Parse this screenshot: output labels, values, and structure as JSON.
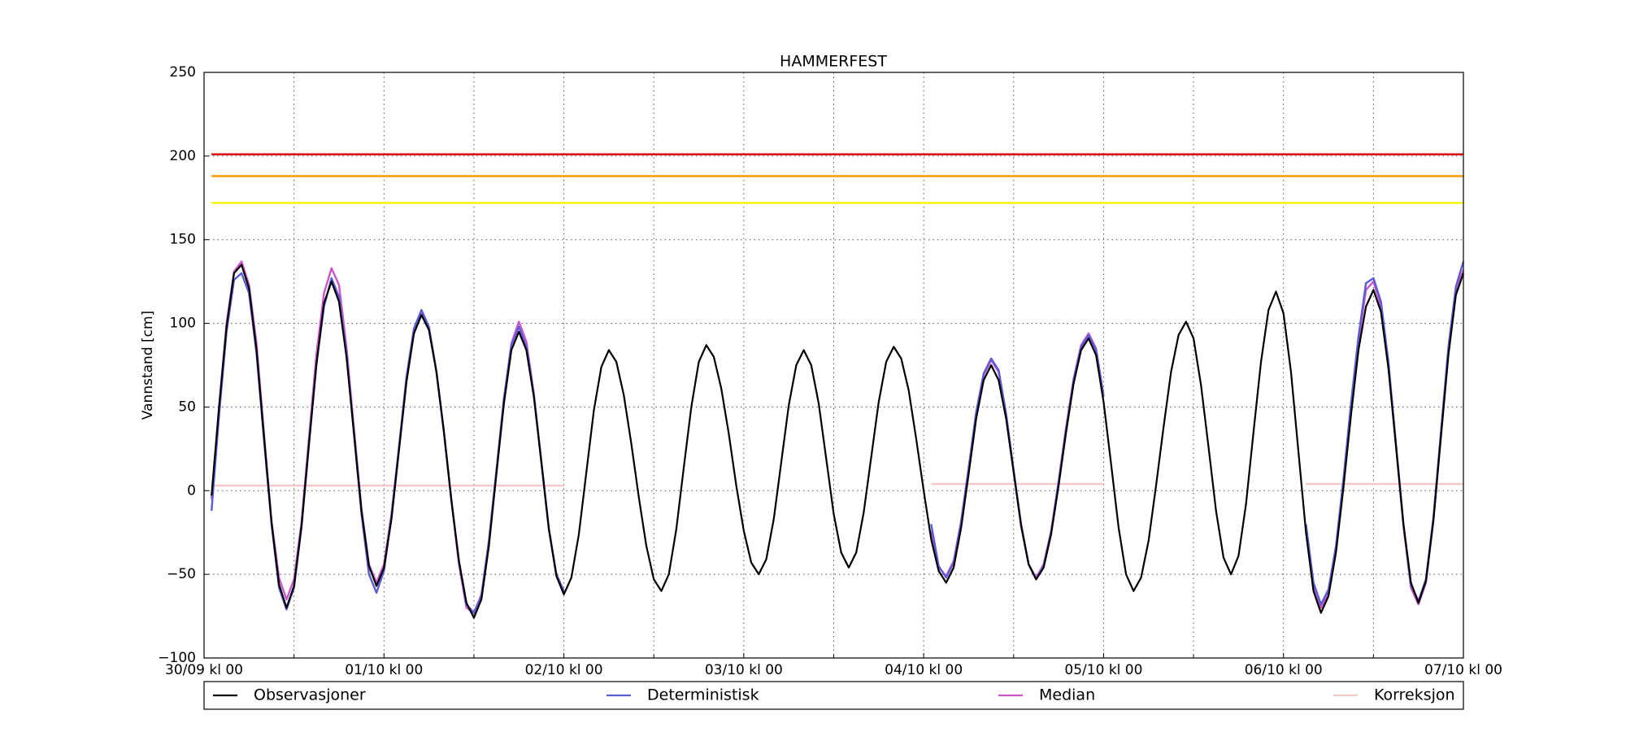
{
  "chart_data": {
    "type": "line",
    "title": "HAMMERFEST",
    "y_label": "Vannstand [cm]",
    "xlim": [
      0,
      168
    ],
    "xticks": [
      {
        "value": 0,
        "label": "30/09 kl 00"
      },
      {
        "value": 24,
        "label": "01/10 kl 00"
      },
      {
        "value": 48,
        "label": "02/10 kl 00"
      },
      {
        "value": 72,
        "label": "03/10 kl 00"
      },
      {
        "value": 96,
        "label": "04/10 kl 00"
      },
      {
        "value": 120,
        "label": "05/10 kl 00"
      },
      {
        "value": 144,
        "label": "06/10 kl 00"
      },
      {
        "value": 168,
        "label": "07/10 kl 00"
      }
    ],
    "x_minor_ticks": [
      12,
      36,
      60,
      84,
      108,
      132,
      156
    ],
    "ylim": [
      -100,
      250
    ],
    "yticks": [
      {
        "value": -100,
        "label": "−100"
      },
      {
        "value": -50,
        "label": "−50"
      },
      0,
      50,
      100,
      150,
      200,
      250
    ],
    "grid": true,
    "legend": "bottom",
    "thresholds": [
      {
        "value": 201,
        "color": "#dd0000"
      },
      {
        "value": 188,
        "color": "#ff9900"
      },
      {
        "value": 172,
        "color": "#f5f500"
      }
    ],
    "x": [
      1,
      2,
      3,
      4,
      5,
      6,
      7,
      8,
      9,
      10,
      11,
      12,
      13,
      14,
      15,
      16,
      17,
      18,
      19,
      20,
      21,
      22,
      23,
      24,
      25,
      26,
      27,
      28,
      29,
      30,
      31,
      32,
      33,
      34,
      35,
      36,
      37,
      38,
      39,
      40,
      41,
      42,
      43,
      44,
      45,
      46,
      47,
      48,
      49,
      50,
      51,
      52,
      53,
      54,
      55,
      56,
      57,
      58,
      59,
      60,
      61,
      62,
      63,
      64,
      65,
      66,
      67,
      68,
      69,
      70,
      71,
      72,
      73,
      74,
      75,
      76,
      77,
      78,
      79,
      80,
      81,
      82,
      83,
      84,
      85,
      86,
      87,
      88,
      89,
      90,
      91,
      92,
      93,
      94,
      95,
      96,
      97,
      98,
      99,
      100,
      101,
      102,
      103,
      104,
      105,
      106,
      107,
      108,
      109,
      110,
      111,
      112,
      113,
      114,
      115,
      116,
      117,
      118,
      119,
      120,
      121,
      122,
      123,
      124,
      125,
      126,
      127,
      128,
      129,
      130,
      131,
      132,
      133,
      134,
      135,
      136,
      137,
      138,
      139,
      140,
      141,
      142,
      143,
      144,
      145,
      146,
      147,
      148,
      149,
      150,
      151,
      152,
      153,
      154,
      155,
      156,
      157,
      158,
      159,
      160,
      161,
      162,
      163,
      164,
      165,
      166,
      167,
      168
    ],
    "series": [
      {
        "name": "Observasjoner",
        "color": "#000000",
        "values": [
          -3,
          50,
          98,
          130,
          135,
          121,
          84,
          32,
          -19,
          -56,
          -70,
          -57,
          -21,
          28,
          76,
          112,
          125,
          113,
          80,
          34,
          -12,
          -45,
          -57,
          -46,
          -17,
          24,
          65,
          94,
          105,
          96,
          71,
          35,
          -6,
          -42,
          -67,
          -76,
          -65,
          -33,
          10,
          52,
          84,
          95,
          84,
          56,
          17,
          -23,
          -51,
          -62,
          -52,
          -26,
          11,
          48,
          74,
          84,
          77,
          57,
          28,
          -4,
          -33,
          -53,
          -60,
          -50,
          -23,
          14,
          50,
          77,
          87,
          80,
          61,
          34,
          3,
          -24,
          -43,
          -50,
          -41,
          -17,
          17,
          51,
          75,
          84,
          75,
          52,
          19,
          -14,
          -37,
          -46,
          -37,
          -13,
          20,
          53,
          77,
          86,
          79,
          60,
          31,
          0,
          -29,
          -48,
          -55,
          -46,
          -22,
          10,
          43,
          66,
          75,
          66,
          43,
          11,
          -21,
          -44,
          -53,
          -46,
          -26,
          3,
          35,
          64,
          84,
          91,
          81,
          53,
          16,
          -22,
          -50,
          -60,
          -52,
          -30,
          3,
          38,
          71,
          93,
          101,
          91,
          63,
          26,
          -12,
          -40,
          -50,
          -39,
          -8,
          35,
          77,
          108,
          119,
          106,
          71,
          23,
          -25,
          -60,
          -73,
          -63,
          -37,
          2,
          45,
          84,
          110,
          120,
          107,
          73,
          27,
          -20,
          -55,
          -67,
          -54,
          -18,
          32,
          81,
          117,
          130
        ]
      },
      {
        "name": "Deterministisk",
        "color": "#5b5bd6",
        "values": [
          -12,
          45,
          95,
          126,
          130,
          118,
          82,
          30,
          -20,
          -58,
          -71,
          -58,
          -22,
          28,
          76,
          110,
          127,
          116,
          82,
          34,
          -14,
          -50,
          -61,
          -48,
          -15,
          26,
          68,
          97,
          108,
          98,
          71,
          35,
          -6,
          -42,
          -68,
          -73,
          -63,
          -30,
          12,
          55,
          87,
          98,
          86,
          57,
          17,
          -23,
          -50,
          -60,
          null,
          null,
          null,
          null,
          null,
          null,
          null,
          null,
          null,
          null,
          null,
          null,
          null,
          null,
          null,
          null,
          null,
          null,
          null,
          null,
          null,
          null,
          null,
          null,
          null,
          null,
          null,
          null,
          null,
          null,
          null,
          null,
          null,
          null,
          null,
          null,
          null,
          null,
          null,
          null,
          null,
          null,
          null,
          null,
          null,
          null,
          null,
          null,
          -20,
          -45,
          -52,
          -43,
          -19,
          13,
          47,
          70,
          79,
          72,
          46,
          12,
          -21,
          -44,
          -53,
          -45,
          -25,
          5,
          37,
          66,
          86,
          93,
          84,
          56,
          null,
          null,
          null,
          null,
          null,
          null,
          null,
          null,
          null,
          null,
          null,
          null,
          null,
          null,
          null,
          null,
          null,
          null,
          null,
          null,
          null,
          null,
          null,
          null,
          null,
          null,
          -20,
          -55,
          -68,
          -59,
          -33,
          7,
          52,
          92,
          124,
          127,
          113,
          77,
          28,
          -20,
          -56,
          -66,
          -53,
          -16,
          35,
          86,
          122,
          137
        ]
      },
      {
        "name": "Median",
        "color": "#cc55cc",
        "values": [
          -5,
          50,
          100,
          131,
          137,
          123,
          88,
          34,
          -18,
          -52,
          -65,
          -53,
          -19,
          32,
          82,
          118,
          133,
          123,
          86,
          37,
          -11,
          -44,
          -55,
          -44,
          -14,
          26,
          66,
          95,
          106,
          97,
          71,
          35,
          -6,
          -44,
          -70,
          -73,
          -62,
          -30,
          12,
          55,
          88,
          101,
          89,
          58,
          17,
          -23,
          -50,
          -60,
          null,
          null,
          null,
          null,
          null,
          null,
          null,
          null,
          null,
          null,
          null,
          null,
          null,
          null,
          null,
          null,
          null,
          null,
          null,
          null,
          null,
          null,
          null,
          null,
          null,
          null,
          null,
          null,
          null,
          null,
          null,
          null,
          null,
          null,
          null,
          null,
          null,
          null,
          null,
          null,
          null,
          null,
          null,
          null,
          null,
          null,
          null,
          null,
          -24,
          -46,
          -51,
          -42,
          -18,
          14,
          46,
          69,
          78,
          71,
          45,
          12,
          -20,
          -44,
          -52,
          -44,
          -24,
          6,
          38,
          67,
          87,
          94,
          85,
          57,
          null,
          null,
          null,
          null,
          null,
          null,
          null,
          null,
          null,
          null,
          null,
          null,
          null,
          null,
          null,
          null,
          null,
          null,
          null,
          null,
          null,
          null,
          null,
          null,
          null,
          null,
          -22,
          -57,
          -70,
          -61,
          -35,
          4,
          49,
          89,
          120,
          125,
          110,
          75,
          27,
          -21,
          -58,
          -68,
          -55,
          -17,
          33,
          84,
          120,
          132
        ]
      },
      {
        "name": "Korreksjon",
        "color": "#f4c8c8",
        "values": [
          3,
          3,
          3,
          3,
          3,
          3,
          3,
          3,
          3,
          3,
          3,
          3,
          3,
          3,
          3,
          3,
          3,
          3,
          3,
          3,
          3,
          3,
          3,
          3,
          3,
          3,
          3,
          3,
          3,
          3,
          3,
          3,
          3,
          3,
          3,
          3,
          3,
          3,
          3,
          3,
          3,
          3,
          3,
          3,
          3,
          3,
          3,
          3,
          null,
          null,
          null,
          null,
          null,
          null,
          null,
          null,
          null,
          null,
          null,
          null,
          null,
          null,
          null,
          null,
          null,
          null,
          null,
          null,
          null,
          null,
          null,
          null,
          null,
          null,
          null,
          null,
          null,
          null,
          null,
          null,
          null,
          null,
          null,
          null,
          null,
          null,
          null,
          null,
          null,
          null,
          null,
          null,
          null,
          null,
          null,
          null,
          4,
          4,
          4,
          4,
          4,
          4,
          4,
          4,
          4,
          4,
          4,
          4,
          4,
          4,
          4,
          4,
          4,
          4,
          4,
          4,
          4,
          4,
          4,
          4,
          null,
          null,
          null,
          null,
          null,
          null,
          null,
          null,
          null,
          null,
          null,
          null,
          null,
          null,
          null,
          null,
          null,
          null,
          null,
          null,
          null,
          null,
          null,
          null,
          null,
          null,
          4,
          4,
          4,
          4,
          4,
          4,
          4,
          4,
          4,
          4,
          4,
          4,
          4,
          4,
          4,
          4,
          4,
          4,
          4,
          4,
          4,
          4
        ]
      }
    ]
  }
}
